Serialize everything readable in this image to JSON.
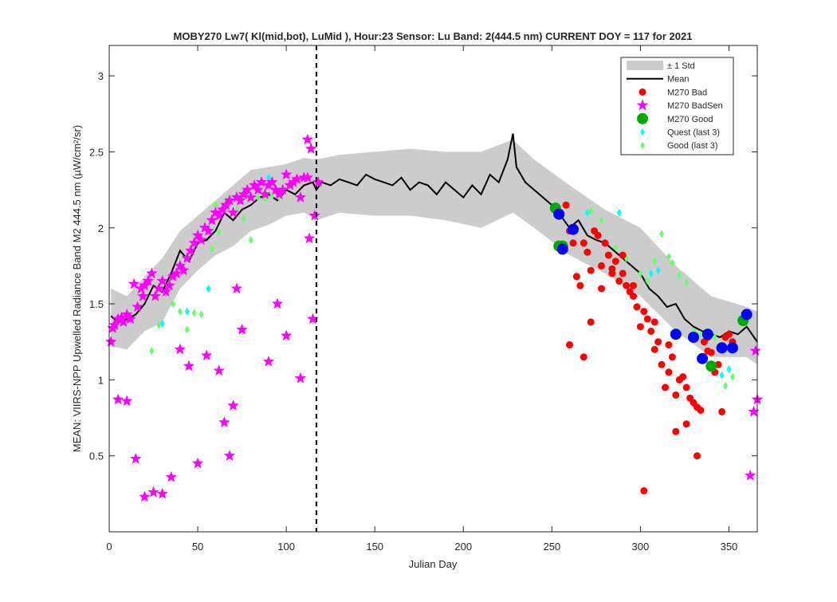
{
  "chart_data": {
    "type": "scatter",
    "title": "MOBY270   Lw7( Kl(mid,bot), LuMid ),   Hour:23 Sensor: Lu Band: 2(444.5 nm)   CURRENT DOY = 117 for 2021",
    "xlabel": "Julian Day",
    "ylabel": "MEAN: VIIRS-NPP Upwelled Radiance Band M2 444.5 nm (µW/cm²/sr)",
    "xlim": [
      0,
      366
    ],
    "ylim": [
      0,
      3.2
    ],
    "xticks": [
      0,
      50,
      100,
      150,
      200,
      250,
      300,
      350
    ],
    "xtick_labels": [
      "0",
      "50",
      "100",
      "150",
      "200",
      "250",
      "300",
      "350"
    ],
    "yticks": [
      0.5,
      1,
      1.5,
      2,
      2.5,
      3
    ],
    "ytick_labels": [
      "0.5",
      "1",
      "1.5",
      "2",
      "2.5",
      "3"
    ],
    "current_doy": 117,
    "legend_position": "top-right",
    "grid": false,
    "colors": {
      "std_band": "#cccccc",
      "mean": "#000000",
      "bad": "#ff0000",
      "badsen": "#ff00ff",
      "good": "#00aa00",
      "quest": "#00ffff",
      "good_last3": "#66ff66",
      "blue": "#0000ff"
    },
    "legend": [
      {
        "label": "± 1 Std",
        "marker": "band",
        "color": "#cccccc"
      },
      {
        "label": "Mean",
        "marker": "line",
        "color": "#000000"
      },
      {
        "label": "M270 Bad",
        "marker": "dot",
        "color": "#ff0000"
      },
      {
        "label": "M270 BadSen",
        "marker": "star",
        "color": "#ff00ff"
      },
      {
        "label": "M270 Good",
        "marker": "bigdot",
        "color": "#00aa00"
      },
      {
        "label": "Quest (last 3)",
        "marker": "diamond",
        "color": "#00ffff"
      },
      {
        "label": "Good (last 3)",
        "marker": "diamond",
        "color": "#66ff66"
      }
    ],
    "mean": {
      "x": [
        1,
        5,
        10,
        15,
        20,
        25,
        30,
        35,
        40,
        45,
        50,
        55,
        60,
        65,
        70,
        75,
        80,
        85,
        90,
        95,
        100,
        105,
        110,
        115,
        117,
        120,
        125,
        130,
        135,
        140,
        145,
        150,
        155,
        160,
        165,
        170,
        175,
        180,
        185,
        190,
        195,
        200,
        205,
        210,
        215,
        220,
        225,
        228,
        230,
        235,
        240,
        245,
        250,
        255,
        260,
        265,
        270,
        275,
        280,
        285,
        290,
        295,
        300,
        305,
        310,
        315,
        320,
        325,
        330,
        335,
        340,
        345,
        350,
        355,
        360,
        366
      ],
      "y": [
        1.42,
        1.38,
        1.4,
        1.43,
        1.5,
        1.62,
        1.58,
        1.7,
        1.85,
        1.78,
        1.9,
        1.92,
        1.98,
        2.1,
        2.05,
        2.12,
        2.15,
        2.2,
        2.22,
        2.18,
        2.25,
        2.22,
        2.28,
        2.3,
        2.25,
        2.3,
        2.28,
        2.32,
        2.3,
        2.28,
        2.35,
        2.32,
        2.3,
        2.28,
        2.33,
        2.25,
        2.3,
        2.28,
        2.22,
        2.3,
        2.25,
        2.2,
        2.28,
        2.22,
        2.35,
        2.3,
        2.45,
        2.62,
        2.4,
        2.3,
        2.25,
        2.2,
        2.15,
        2.08,
        2.0,
        2.05,
        1.95,
        1.92,
        1.9,
        1.85,
        1.8,
        1.75,
        1.7,
        1.6,
        1.55,
        1.48,
        1.5,
        1.4,
        1.35,
        1.32,
        1.3,
        1.28,
        1.32,
        1.3,
        1.35,
        1.25
      ]
    },
    "std_band": {
      "x": [
        1,
        10,
        20,
        30,
        40,
        50,
        60,
        70,
        80,
        90,
        100,
        110,
        117,
        130,
        150,
        170,
        190,
        210,
        228,
        240,
        260,
        280,
        300,
        320,
        340,
        360,
        366
      ],
      "upper": [
        1.6,
        1.55,
        1.68,
        1.8,
        1.98,
        2.08,
        2.18,
        2.28,
        2.38,
        2.4,
        2.42,
        2.46,
        2.45,
        2.48,
        2.5,
        2.52,
        2.5,
        2.5,
        2.58,
        2.45,
        2.28,
        2.12,
        2.0,
        1.75,
        1.55,
        1.48,
        1.45
      ],
      "lower": [
        1.22,
        1.2,
        1.32,
        1.38,
        1.6,
        1.72,
        1.82,
        1.88,
        1.98,
        2.02,
        2.08,
        2.1,
        2.05,
        2.1,
        2.08,
        2.08,
        2.05,
        2.0,
        2.1,
        2.0,
        1.82,
        1.7,
        1.55,
        1.32,
        1.15,
        1.15,
        1.1
      ]
    },
    "series": [
      {
        "name": "M270 Bad",
        "x": [
          258,
          260,
          262,
          264,
          266,
          268,
          270,
          272,
          274,
          276,
          278,
          280,
          282,
          284,
          286,
          288,
          290,
          292,
          294,
          296,
          298,
          300,
          302,
          304,
          306,
          308,
          310,
          312,
          314,
          316,
          318,
          320,
          322,
          324,
          326,
          328,
          330,
          332,
          334,
          336,
          338,
          340,
          342,
          344,
          346,
          348,
          350,
          352,
          260,
          268,
          272,
          278,
          284,
          290,
          296,
          302,
          308,
          316,
          320,
          326,
          332,
          338,
          346
        ],
        "y": [
          2.15,
          1.98,
          1.9,
          1.68,
          1.62,
          1.9,
          1.84,
          1.72,
          1.98,
          1.95,
          1.75,
          1.9,
          1.82,
          1.7,
          1.78,
          1.65,
          1.7,
          1.62,
          1.58,
          1.55,
          1.48,
          1.35,
          1.45,
          1.4,
          1.32,
          1.2,
          1.25,
          1.1,
          0.95,
          1.05,
          1.15,
          0.9,
          1.0,
          1.02,
          0.95,
          0.88,
          0.85,
          0.82,
          0.8,
          1.25,
          1.28,
          1.18,
          1.05,
          1.1,
          1.22,
          1.28,
          1.3,
          1.25,
          1.23,
          1.15,
          1.38,
          1.6,
          1.73,
          1.82,
          1.62,
          0.27,
          1.38,
          1.23,
          0.66,
          0.71,
          0.5,
          1.19,
          0.79
        ]
      },
      {
        "name": "M270 BadSen",
        "x": [
          1,
          3,
          5,
          7,
          8,
          10,
          12,
          14,
          16,
          18,
          19,
          20,
          22,
          24,
          26,
          28,
          30,
          32,
          34,
          36,
          38,
          40,
          42,
          44,
          46,
          48,
          50,
          52,
          54,
          56,
          58,
          60,
          62,
          64,
          66,
          68,
          70,
          72,
          74,
          76,
          78,
          80,
          82,
          84,
          86,
          88,
          90,
          92,
          94,
          96,
          98,
          100,
          102,
          104,
          106,
          108,
          110,
          112,
          114,
          116,
          118,
          115,
          113,
          112,
          108,
          100,
          95,
          90,
          75,
          72,
          70,
          68,
          65,
          62,
          55,
          50,
          45,
          40,
          35,
          30,
          25,
          20,
          15,
          10,
          5,
          2,
          362,
          364,
          366,
          365
        ],
        "y": [
          1.25,
          1.36,
          1.4,
          1.41,
          1.38,
          1.43,
          1.4,
          1.63,
          1.48,
          1.6,
          1.55,
          1.62,
          1.65,
          1.7,
          1.55,
          1.6,
          1.65,
          1.58,
          1.62,
          1.68,
          1.7,
          1.75,
          1.72,
          1.8,
          1.85,
          1.9,
          1.95,
          1.92,
          2.0,
          1.98,
          2.05,
          2.1,
          2.08,
          2.12,
          2.15,
          2.18,
          2.1,
          2.2,
          2.18,
          2.22,
          2.25,
          2.2,
          2.28,
          2.25,
          2.3,
          2.22,
          2.28,
          2.3,
          2.25,
          2.22,
          2.25,
          2.35,
          2.28,
          2.3,
          2.32,
          2.2,
          2.33,
          2.58,
          2.52,
          2.08,
          2.3,
          1.4,
          1.93,
          2.33,
          1.01,
          1.29,
          1.5,
          1.12,
          1.33,
          1.6,
          0.83,
          0.5,
          0.72,
          1.06,
          1.16,
          0.45,
          1.09,
          1.2,
          0.36,
          0.25,
          0.26,
          0.23,
          0.48,
          0.86,
          0.87,
          1.34,
          0.37,
          0.79,
          0.87,
          1.19
        ]
      },
      {
        "name": "M270 Good",
        "x": [
          252,
          254,
          256,
          340,
          358
        ],
        "y": [
          2.13,
          1.88,
          1.88,
          1.09,
          1.39
        ]
      },
      {
        "name": "Blue",
        "x": [
          254,
          256,
          262,
          320,
          330,
          335,
          338,
          346,
          352,
          360
        ],
        "y": [
          2.09,
          1.86,
          1.99,
          1.3,
          1.28,
          1.14,
          1.3,
          1.21,
          1.21,
          1.43
        ]
      },
      {
        "name": "Quest (last 3)",
        "x": [
          30,
          44,
          56,
          90,
          270,
          288,
          306,
          310,
          320,
          330,
          346,
          350
        ],
        "y": [
          1.37,
          1.45,
          1.6,
          2.33,
          2.1,
          2.1,
          1.7,
          1.72,
          1.3,
          1.3,
          1.03,
          1.07
        ]
      },
      {
        "name": "Good (last 3)",
        "x": [
          20,
          24,
          28,
          36,
          40,
          44,
          48,
          52,
          56,
          58,
          60,
          62,
          66,
          72,
          76,
          80,
          84,
          88,
          92,
          96,
          272,
          278,
          286,
          292,
          300,
          304,
          308,
          312,
          316,
          318,
          322,
          326,
          330,
          334,
          338,
          342,
          348,
          352
        ],
        "y": [
          1.62,
          1.19,
          1.36,
          1.5,
          1.45,
          1.33,
          1.44,
          1.43,
          1.6,
          1.86,
          2.15,
          1.97,
          2.18,
          2.12,
          2.06,
          1.92,
          2.2,
          2.19,
          2.21,
          2.2,
          2.11,
          2.05,
          1.87,
          1.8,
          1.7,
          1.65,
          1.78,
          1.96,
          1.81,
          1.77,
          1.69,
          1.64,
          1.32,
          1.3,
          1.29,
          1.28,
          0.96,
          1.02
        ]
      }
    ]
  }
}
